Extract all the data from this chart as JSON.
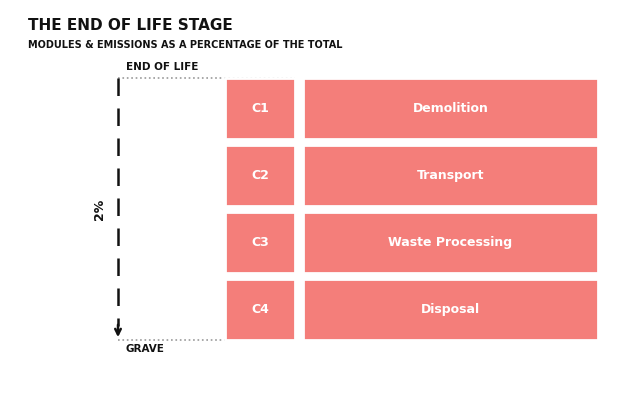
{
  "title": "THE END OF LIFE STAGE",
  "subtitle": "MODULES & EMISSIONS AS A PERCENTAGE OF THE TOTAL",
  "title_fontsize": 11,
  "subtitle_fontsize": 7,
  "background_color": "#ffffff",
  "salmon_color": "#F47E7A",
  "modules": [
    "C1",
    "C2",
    "C3",
    "C4"
  ],
  "descriptions": [
    "Demolition",
    "Transport",
    "Waste Processing",
    "Disposal"
  ],
  "percentage_label": "2%",
  "top_label": "END OF LIFE",
  "bottom_label": "GRAVE",
  "text_color_white": "#ffffff",
  "text_color_black": "#111111",
  "dotted_line_color": "#999999"
}
